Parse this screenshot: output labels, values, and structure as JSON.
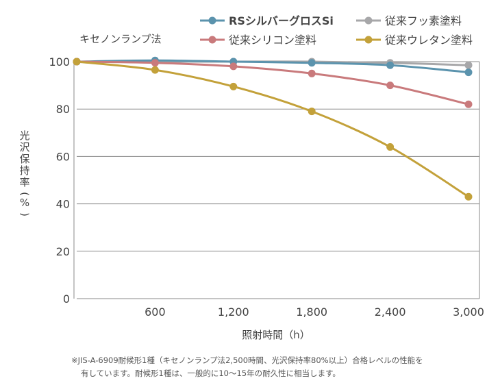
{
  "chart_data": {
    "type": "line",
    "title": "",
    "method_label": "キセノンランプ法",
    "xlabel": "照射時間（h）",
    "ylabel": "光沢保持率（%）",
    "x": [
      0,
      600,
      1200,
      1800,
      2400,
      3000
    ],
    "x_tick_labels": [
      "",
      "600",
      "1,200",
      "1,800",
      "2,400",
      "3,000"
    ],
    "xlim": [
      0,
      3000
    ],
    "ylim": [
      0,
      100
    ],
    "y_ticks": [
      0,
      20,
      40,
      60,
      80,
      100
    ],
    "y_tick_labels": [
      "0",
      "20",
      "40",
      "60",
      "80",
      "100"
    ],
    "grid": true,
    "legend_position": "top",
    "series": [
      {
        "name": "RSシルバーグロスSi",
        "color": "#5b93ad",
        "bold": true,
        "values": [
          100,
          100.5,
          100,
          99.5,
          98.5,
          95.5
        ]
      },
      {
        "name": "従来フッ素塗料",
        "color": "#a7a7a9",
        "bold": false,
        "values": [
          100,
          100,
          100,
          100,
          99.5,
          98.5
        ]
      },
      {
        "name": "従来シリコン塗料",
        "color": "#c97a7c",
        "bold": false,
        "values": [
          100,
          99.5,
          98,
          95,
          90,
          82
        ]
      },
      {
        "name": "従来ウレタン塗料",
        "color": "#c3a13a",
        "bold": false,
        "values": [
          100,
          96.5,
          89.5,
          79,
          64,
          43
        ]
      }
    ]
  },
  "footnote": {
    "line1": "※JIS-A-6909耐候形1種（キセノンランプ法2,500時間、光沢保持率80%以上）合格レベルの性能を",
    "line2": "有しています。耐候形1種は、一般的に10〜15年の耐久性に相当します。"
  }
}
